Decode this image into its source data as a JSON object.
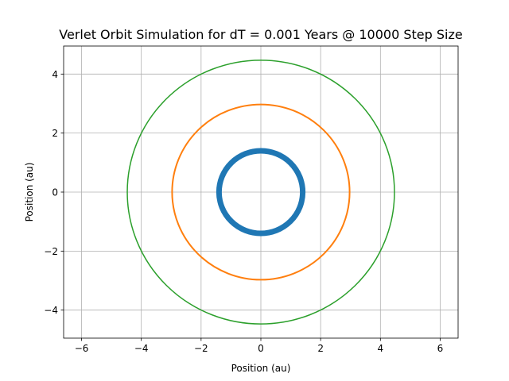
{
  "chart_data": {
    "type": "line",
    "title": "Verlet Orbit Simulation for dT = 0.001 Years @ 10000 Step Size",
    "xlabel": "Position (au)",
    "ylabel": "Position (au)",
    "xlim": [
      -6.6,
      6.6
    ],
    "ylim": [
      -4.95,
      4.95
    ],
    "xticks": [
      -6,
      -4,
      -2,
      0,
      2,
      4,
      6
    ],
    "yticks": [
      -4,
      -2,
      0,
      2,
      4
    ],
    "xtick_labels": [
      "−6",
      "−4",
      "−2",
      "0",
      "2",
      "4",
      "6"
    ],
    "ytick_labels": [
      "−4",
      "−2",
      "0",
      "2",
      "4"
    ],
    "grid": true,
    "aspect": "equal",
    "series": [
      {
        "radius": 1.4,
        "color": "#1f77b4",
        "line_width": 7
      },
      {
        "radius": 2.97,
        "color": "#ff7f0e",
        "line_width": 2
      },
      {
        "radius": 4.47,
        "color": "#2ca02c",
        "line_width": 1.5
      }
    ]
  }
}
